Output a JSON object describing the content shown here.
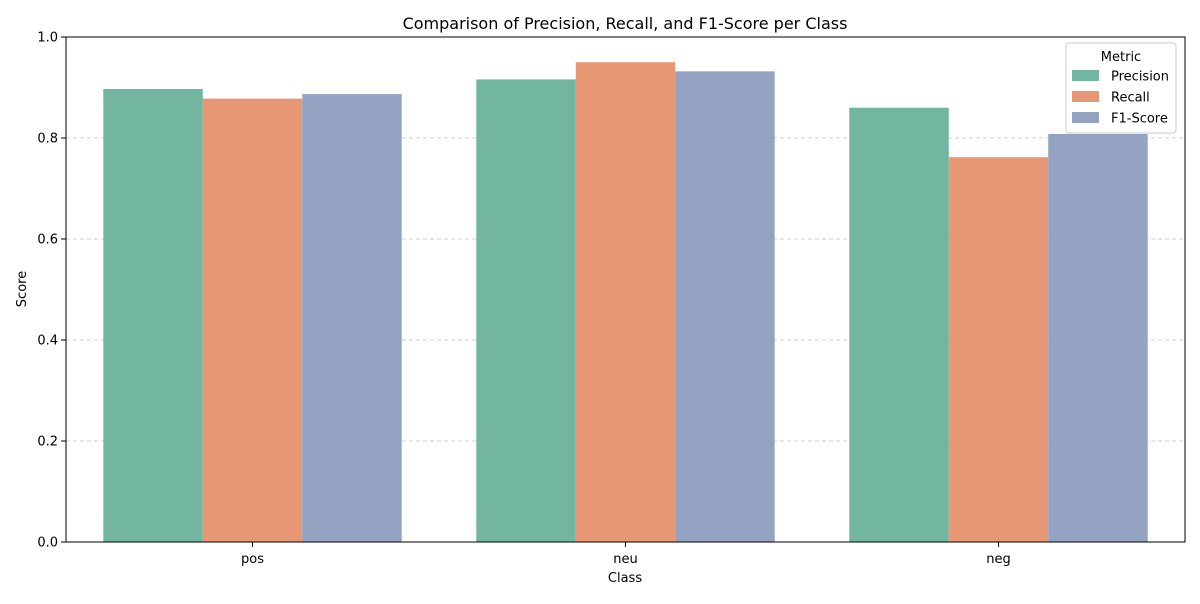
{
  "chart_data": {
    "type": "bar",
    "title": "Comparison of Precision, Recall, and F1-Score per Class",
    "xlabel": "Class",
    "ylabel": "Score",
    "ylim": [
      0,
      1.0
    ],
    "yticks": [
      "0.0",
      "0.2",
      "0.4",
      "0.6",
      "0.8",
      "1.0"
    ],
    "categories": [
      "pos",
      "neu",
      "neg"
    ],
    "series": [
      {
        "name": "Precision",
        "color": "#72b5a1",
        "values": [
          0.897,
          0.916,
          0.86
        ]
      },
      {
        "name": "Recall",
        "color": "#e89774",
        "values": [
          0.878,
          0.95,
          0.762
        ]
      },
      {
        "name": "F1-Score",
        "color": "#94a3c2",
        "values": [
          0.887,
          0.932,
          0.808
        ]
      }
    ],
    "legend": {
      "title": "Metric",
      "position": "top-right"
    },
    "grid": {
      "y": true,
      "style": "dashed"
    }
  }
}
